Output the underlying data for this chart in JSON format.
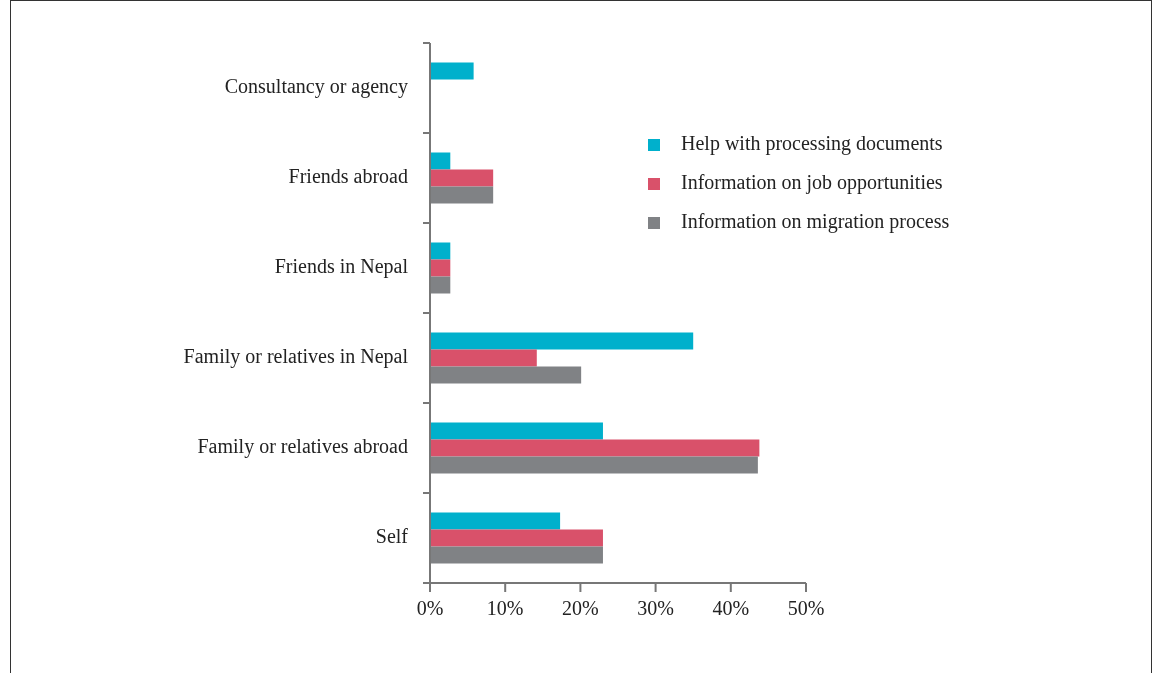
{
  "chart_data": {
    "type": "bar",
    "orientation": "horizontal",
    "categories": [
      "Consultancy or agency",
      "Friends abroad",
      "Friends in Nepal",
      "Family or relatives in Nepal",
      "Family or relatives abroad",
      "Self"
    ],
    "series": [
      {
        "name": "Help with processing documents",
        "color": "#00b0cc",
        "values": [
          5.8,
          2.7,
          2.7,
          35,
          23,
          17.3
        ]
      },
      {
        "name": "Information on job opportunities",
        "color": "#d9516a",
        "values": [
          null,
          8.4,
          2.7,
          14.2,
          43.8,
          23
        ]
      },
      {
        "name": "Information on migration process",
        "color": "#808285",
        "values": [
          null,
          8.4,
          2.7,
          20.1,
          43.6,
          23
        ]
      }
    ],
    "xlim": [
      0,
      50
    ],
    "xticks": [
      {
        "value": 0,
        "label": "0%"
      },
      {
        "value": 10,
        "label": "10%"
      },
      {
        "value": 20,
        "label": "20%"
      },
      {
        "value": 30,
        "label": "30%"
      },
      {
        "value": 40,
        "label": "40%"
      },
      {
        "value": 50,
        "label": "50%"
      }
    ],
    "grid": false,
    "legend": "top right"
  }
}
